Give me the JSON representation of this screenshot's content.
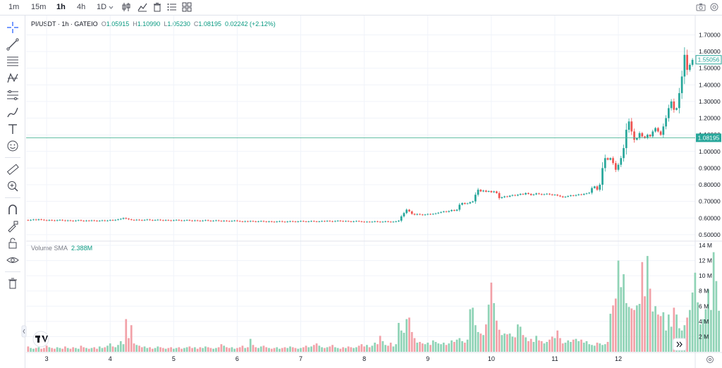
{
  "toolbar": {
    "timeframes": [
      "1m",
      "15m",
      "1h",
      "4h",
      "1D"
    ],
    "active_timeframe": "1h",
    "icons": [
      "candles-icon",
      "indicators-icon",
      "trash-icon",
      "list-icon",
      "layout-icon"
    ],
    "right_icons": [
      "camera-icon",
      "settings-icon"
    ]
  },
  "sidebar": {
    "tools": [
      "crosshair-icon",
      "trendline-icon",
      "fib-icon",
      "pattern-icon",
      "measure-icon",
      "brush-icon",
      "text-icon",
      "emoji-icon",
      "ruler-icon",
      "zoom-in-icon",
      "magnet-icon",
      "lock-drawing-icon",
      "lock-icon",
      "eye-icon",
      "trash-icon"
    ]
  },
  "legend": {
    "symbol": "PI/USDT · 1h · GATEIO",
    "o_label": "O",
    "o_value": "1.05915",
    "h_label": "H",
    "h_value": "1.10990",
    "l_label": "L",
    "l_value": "1.05230",
    "c_label": "C",
    "c_value": "1.08195",
    "change": "0.02242 (+2.12%)"
  },
  "volume_legend": {
    "label": "Volume SMA",
    "value": "2.388M"
  },
  "badges": {
    "last_price": "1.55056",
    "crosshair_price": "1.08195"
  },
  "colors": {
    "up": "#26a69a",
    "down": "#ef5350",
    "vol_up": "#8fd3b6",
    "vol_down": "#f2a1a8",
    "hline": "#4fb79a"
  },
  "chart_data": {
    "type": "candlestick",
    "price_axis": {
      "ticks": [
        "1.70000",
        "1.60000",
        "1.50000",
        "1.40000",
        "1.30000",
        "1.20000",
        "1.10000",
        "1.00000",
        "0.90000",
        "0.80000",
        "0.70000",
        "0.60000",
        "0.50000"
      ],
      "range": [
        0.47,
        1.74
      ]
    },
    "volume_axis": {
      "ticks": [
        "14 M",
        "12 M",
        "10 M",
        "8 M",
        "6 M",
        "4 M",
        "2 M"
      ],
      "range": [
        0,
        14
      ]
    },
    "x_axis": {
      "ticks": [
        "3",
        "4",
        "5",
        "6",
        "7",
        "8",
        "9",
        "10",
        "11",
        "12"
      ]
    },
    "horizontal_line": 1.08195,
    "last_price": 1.55056,
    "candles": [
      {
        "o": 0.588,
        "c": 0.586
      },
      {
        "o": 0.586,
        "c": 0.589
      },
      {
        "o": 0.589,
        "c": 0.591
      },
      {
        "o": 0.591,
        "c": 0.588
      },
      {
        "o": 0.588,
        "c": 0.592
      },
      {
        "o": 0.592,
        "c": 0.59
      },
      {
        "o": 0.59,
        "c": 0.587
      },
      {
        "o": 0.587,
        "c": 0.585
      },
      {
        "o": 0.585,
        "c": 0.588
      },
      {
        "o": 0.588,
        "c": 0.586
      },
      {
        "o": 0.586,
        "c": 0.584
      },
      {
        "o": 0.584,
        "c": 0.587
      },
      {
        "o": 0.587,
        "c": 0.589
      },
      {
        "o": 0.589,
        "c": 0.586
      },
      {
        "o": 0.586,
        "c": 0.583
      },
      {
        "o": 0.583,
        "c": 0.586
      },
      {
        "o": 0.586,
        "c": 0.584
      },
      {
        "o": 0.584,
        "c": 0.582
      },
      {
        "o": 0.582,
        "c": 0.585
      },
      {
        "o": 0.585,
        "c": 0.587
      },
      {
        "o": 0.587,
        "c": 0.584
      },
      {
        "o": 0.584,
        "c": 0.582
      },
      {
        "o": 0.582,
        "c": 0.585
      },
      {
        "o": 0.585,
        "c": 0.583
      },
      {
        "o": 0.583,
        "c": 0.586
      },
      {
        "o": 0.586,
        "c": 0.584
      },
      {
        "o": 0.584,
        "c": 0.582
      },
      {
        "o": 0.582,
        "c": 0.584
      },
      {
        "o": 0.584,
        "c": 0.586
      },
      {
        "o": 0.586,
        "c": 0.583
      },
      {
        "o": 0.583,
        "c": 0.585
      },
      {
        "o": 0.585,
        "c": 0.588
      },
      {
        "o": 0.588,
        "c": 0.586
      },
      {
        "o": 0.586,
        "c": 0.589
      },
      {
        "o": 0.589,
        "c": 0.592
      },
      {
        "o": 0.592,
        "c": 0.595
      },
      {
        "o": 0.595,
        "c": 0.6
      },
      {
        "o": 0.6,
        "c": 0.596
      },
      {
        "o": 0.596,
        "c": 0.592
      },
      {
        "o": 0.592,
        "c": 0.589
      },
      {
        "o": 0.589,
        "c": 0.587
      },
      {
        "o": 0.587,
        "c": 0.59
      },
      {
        "o": 0.59,
        "c": 0.588
      },
      {
        "o": 0.588,
        "c": 0.586
      },
      {
        "o": 0.586,
        "c": 0.589
      },
      {
        "o": 0.589,
        "c": 0.591
      },
      {
        "o": 0.591,
        "c": 0.588
      },
      {
        "o": 0.588,
        "c": 0.586
      },
      {
        "o": 0.586,
        "c": 0.588
      },
      {
        "o": 0.588,
        "c": 0.59
      },
      {
        "o": 0.59,
        "c": 0.587
      },
      {
        "o": 0.587,
        "c": 0.585
      },
      {
        "o": 0.585,
        "c": 0.588
      },
      {
        "o": 0.588,
        "c": 0.586
      },
      {
        "o": 0.586,
        "c": 0.584
      },
      {
        "o": 0.584,
        "c": 0.587
      },
      {
        "o": 0.587,
        "c": 0.589
      },
      {
        "o": 0.589,
        "c": 0.586
      },
      {
        "o": 0.586,
        "c": 0.584
      },
      {
        "o": 0.584,
        "c": 0.586
      },
      {
        "o": 0.586,
        "c": 0.588
      },
      {
        "o": 0.588,
        "c": 0.585
      },
      {
        "o": 0.585,
        "c": 0.583
      },
      {
        "o": 0.583,
        "c": 0.586
      },
      {
        "o": 0.586,
        "c": 0.584
      },
      {
        "o": 0.584,
        "c": 0.582
      },
      {
        "o": 0.582,
        "c": 0.585
      },
      {
        "o": 0.585,
        "c": 0.587
      },
      {
        "o": 0.587,
        "c": 0.584
      },
      {
        "o": 0.584,
        "c": 0.582
      },
      {
        "o": 0.582,
        "c": 0.584
      },
      {
        "o": 0.584,
        "c": 0.586
      },
      {
        "o": 0.586,
        "c": 0.583
      },
      {
        "o": 0.583,
        "c": 0.581
      },
      {
        "o": 0.581,
        "c": 0.584
      },
      {
        "o": 0.584,
        "c": 0.582
      },
      {
        "o": 0.582,
        "c": 0.58
      },
      {
        "o": 0.58,
        "c": 0.583
      },
      {
        "o": 0.583,
        "c": 0.585
      },
      {
        "o": 0.585,
        "c": 0.582
      },
      {
        "o": 0.582,
        "c": 0.58
      },
      {
        "o": 0.58,
        "c": 0.578
      },
      {
        "o": 0.578,
        "c": 0.581
      },
      {
        "o": 0.581,
        "c": 0.579
      },
      {
        "o": 0.579,
        "c": 0.582
      },
      {
        "o": 0.582,
        "c": 0.58
      },
      {
        "o": 0.58,
        "c": 0.578
      },
      {
        "o": 0.578,
        "c": 0.58
      },
      {
        "o": 0.58,
        "c": 0.582
      },
      {
        "o": 0.582,
        "c": 0.579
      },
      {
        "o": 0.579,
        "c": 0.577
      },
      {
        "o": 0.577,
        "c": 0.58
      },
      {
        "o": 0.58,
        "c": 0.578
      },
      {
        "o": 0.578,
        "c": 0.576
      },
      {
        "o": 0.576,
        "c": 0.579
      },
      {
        "o": 0.579,
        "c": 0.581
      },
      {
        "o": 0.581,
        "c": 0.578
      },
      {
        "o": 0.578,
        "c": 0.576
      },
      {
        "o": 0.576,
        "c": 0.579
      },
      {
        "o": 0.579,
        "c": 0.581
      },
      {
        "o": 0.581,
        "c": 0.579
      },
      {
        "o": 0.579,
        "c": 0.577
      },
      {
        "o": 0.577,
        "c": 0.58
      },
      {
        "o": 0.58,
        "c": 0.582
      },
      {
        "o": 0.582,
        "c": 0.58
      },
      {
        "o": 0.58,
        "c": 0.578
      },
      {
        "o": 0.578,
        "c": 0.58
      },
      {
        "o": 0.58,
        "c": 0.582
      },
      {
        "o": 0.582,
        "c": 0.58
      },
      {
        "o": 0.58,
        "c": 0.578
      },
      {
        "o": 0.578,
        "c": 0.58
      },
      {
        "o": 0.58,
        "c": 0.582
      },
      {
        "o": 0.582,
        "c": 0.58
      },
      {
        "o": 0.58,
        "c": 0.583
      },
      {
        "o": 0.583,
        "c": 0.581
      },
      {
        "o": 0.581,
        "c": 0.579
      },
      {
        "o": 0.579,
        "c": 0.582
      },
      {
        "o": 0.582,
        "c": 0.584
      },
      {
        "o": 0.584,
        "c": 0.582
      },
      {
        "o": 0.582,
        "c": 0.58
      },
      {
        "o": 0.58,
        "c": 0.582
      },
      {
        "o": 0.582,
        "c": 0.58
      },
      {
        "o": 0.58,
        "c": 0.578
      },
      {
        "o": 0.578,
        "c": 0.58
      },
      {
        "o": 0.58,
        "c": 0.582
      },
      {
        "o": 0.582,
        "c": 0.58
      },
      {
        "o": 0.58,
        "c": 0.578
      },
      {
        "o": 0.578,
        "c": 0.576
      },
      {
        "o": 0.576,
        "c": 0.578
      },
      {
        "o": 0.578,
        "c": 0.576
      },
      {
        "o": 0.576,
        "c": 0.578
      },
      {
        "o": 0.578,
        "c": 0.58
      },
      {
        "o": 0.58,
        "c": 0.578
      },
      {
        "o": 0.578,
        "c": 0.576
      },
      {
        "o": 0.576,
        "c": 0.578
      },
      {
        "o": 0.578,
        "c": 0.58
      },
      {
        "o": 0.58,
        "c": 0.578
      },
      {
        "o": 0.578,
        "c": 0.576
      },
      {
        "o": 0.576,
        "c": 0.578
      },
      {
        "o": 0.578,
        "c": 0.58
      },
      {
        "o": 0.58,
        "c": 0.584
      },
      {
        "o": 0.584,
        "c": 0.61
      },
      {
        "o": 0.61,
        "c": 0.63
      },
      {
        "o": 0.63,
        "c": 0.65
      },
      {
        "o": 0.65,
        "c": 0.64
      },
      {
        "o": 0.64,
        "c": 0.625
      },
      {
        "o": 0.625,
        "c": 0.62
      },
      {
        "o": 0.62,
        "c": 0.624
      },
      {
        "o": 0.624,
        "c": 0.621
      },
      {
        "o": 0.621,
        "c": 0.618
      },
      {
        "o": 0.618,
        "c": 0.621
      },
      {
        "o": 0.621,
        "c": 0.624
      },
      {
        "o": 0.624,
        "c": 0.622
      },
      {
        "o": 0.622,
        "c": 0.625
      },
      {
        "o": 0.625,
        "c": 0.628
      },
      {
        "o": 0.628,
        "c": 0.632
      },
      {
        "o": 0.632,
        "c": 0.636
      },
      {
        "o": 0.636,
        "c": 0.64
      },
      {
        "o": 0.64,
        "c": 0.637
      },
      {
        "o": 0.637,
        "c": 0.642
      },
      {
        "o": 0.642,
        "c": 0.648
      },
      {
        "o": 0.648,
        "c": 0.644
      },
      {
        "o": 0.644,
        "c": 0.65
      },
      {
        "o": 0.65,
        "c": 0.68
      },
      {
        "o": 0.68,
        "c": 0.69
      },
      {
        "o": 0.69,
        "c": 0.685
      },
      {
        "o": 0.685,
        "c": 0.688
      },
      {
        "o": 0.688,
        "c": 0.695
      },
      {
        "o": 0.695,
        "c": 0.7
      },
      {
        "o": 0.7,
        "c": 0.74
      },
      {
        "o": 0.74,
        "c": 0.77
      },
      {
        "o": 0.77,
        "c": 0.76
      },
      {
        "o": 0.76,
        "c": 0.765
      },
      {
        "o": 0.765,
        "c": 0.758
      },
      {
        "o": 0.758,
        "c": 0.762
      },
      {
        "o": 0.762,
        "c": 0.755
      },
      {
        "o": 0.755,
        "c": 0.76
      },
      {
        "o": 0.76,
        "c": 0.75
      },
      {
        "o": 0.75,
        "c": 0.72
      },
      {
        "o": 0.72,
        "c": 0.725
      },
      {
        "o": 0.725,
        "c": 0.73
      },
      {
        "o": 0.73,
        "c": 0.728
      },
      {
        "o": 0.728,
        "c": 0.734
      },
      {
        "o": 0.734,
        "c": 0.738
      },
      {
        "o": 0.738,
        "c": 0.735
      },
      {
        "o": 0.735,
        "c": 0.74
      },
      {
        "o": 0.74,
        "c": 0.745
      },
      {
        "o": 0.745,
        "c": 0.742
      },
      {
        "o": 0.742,
        "c": 0.75
      },
      {
        "o": 0.75,
        "c": 0.745
      },
      {
        "o": 0.745,
        "c": 0.738
      },
      {
        "o": 0.738,
        "c": 0.742
      },
      {
        "o": 0.742,
        "c": 0.748
      },
      {
        "o": 0.748,
        "c": 0.744
      },
      {
        "o": 0.744,
        "c": 0.74
      },
      {
        "o": 0.74,
        "c": 0.743
      },
      {
        "o": 0.743,
        "c": 0.746
      },
      {
        "o": 0.746,
        "c": 0.742
      },
      {
        "o": 0.742,
        "c": 0.738
      },
      {
        "o": 0.738,
        "c": 0.74
      },
      {
        "o": 0.74,
        "c": 0.735
      },
      {
        "o": 0.735,
        "c": 0.73
      },
      {
        "o": 0.73,
        "c": 0.725
      },
      {
        "o": 0.725,
        "c": 0.728
      },
      {
        "o": 0.728,
        "c": 0.732
      },
      {
        "o": 0.732,
        "c": 0.736
      },
      {
        "o": 0.736,
        "c": 0.734
      },
      {
        "o": 0.734,
        "c": 0.738
      },
      {
        "o": 0.738,
        "c": 0.742
      },
      {
        "o": 0.742,
        "c": 0.74
      },
      {
        "o": 0.74,
        "c": 0.745
      },
      {
        "o": 0.745,
        "c": 0.748
      },
      {
        "o": 0.748,
        "c": 0.752
      },
      {
        "o": 0.752,
        "c": 0.78
      },
      {
        "o": 0.78,
        "c": 0.79
      },
      {
        "o": 0.79,
        "c": 0.77
      },
      {
        "o": 0.77,
        "c": 0.8
      },
      {
        "o": 0.8,
        "c": 0.9
      },
      {
        "o": 0.9,
        "c": 0.96
      },
      {
        "o": 0.96,
        "c": 0.95
      },
      {
        "o": 0.95,
        "c": 0.96
      },
      {
        "o": 0.96,
        "c": 0.93
      },
      {
        "o": 0.93,
        "c": 0.89
      },
      {
        "o": 0.89,
        "c": 0.92
      },
      {
        "o": 0.92,
        "c": 0.96
      },
      {
        "o": 0.96,
        "c": 1.02
      },
      {
        "o": 1.02,
        "c": 1.13
      },
      {
        "o": 1.13,
        "c": 1.18
      },
      {
        "o": 1.18,
        "c": 1.12
      },
      {
        "o": 1.12,
        "c": 1.07
      },
      {
        "o": 1.07,
        "c": 1.08
      },
      {
        "o": 1.08,
        "c": 1.11
      },
      {
        "o": 1.11,
        "c": 1.09
      },
      {
        "o": 1.09,
        "c": 1.08
      },
      {
        "o": 1.08,
        "c": 1.1
      },
      {
        "o": 1.1,
        "c": 1.09
      },
      {
        "o": 1.09,
        "c": 1.12
      },
      {
        "o": 1.12,
        "c": 1.14
      },
      {
        "o": 1.14,
        "c": 1.12
      },
      {
        "o": 1.12,
        "c": 1.1
      },
      {
        "o": 1.1,
        "c": 1.15
      },
      {
        "o": 1.15,
        "c": 1.2
      },
      {
        "o": 1.2,
        "c": 1.26
      },
      {
        "o": 1.26,
        "c": 1.3
      },
      {
        "o": 1.3,
        "c": 1.25
      },
      {
        "o": 1.25,
        "c": 1.26
      },
      {
        "o": 1.26,
        "c": 1.35
      },
      {
        "o": 1.35,
        "c": 1.45
      },
      {
        "o": 1.45,
        "c": 1.58
      },
      {
        "o": 1.58,
        "c": 1.49
      },
      {
        "o": 1.49,
        "c": 1.52
      },
      {
        "o": 1.52,
        "c": 1.55
      }
    ],
    "volumes": [
      0.7,
      0.5,
      0.4,
      0.5,
      0.6,
      0.4,
      0.5,
      0.8,
      0.6,
      0.5,
      0.4,
      0.6,
      0.5,
      0.4,
      0.7,
      0.5,
      0.4,
      0.6,
      0.5,
      0.4,
      0.8,
      0.6,
      0.5,
      0.4,
      0.5,
      0.6,
      0.4,
      0.7,
      0.5,
      0.6,
      0.8,
      1.1,
      0.7,
      0.6,
      0.9,
      1.4,
      1.0,
      4.3,
      1.8,
      3.5,
      1.1,
      0.9,
      0.8,
      0.6,
      0.7,
      0.5,
      0.6,
      0.4,
      0.5,
      0.7,
      0.6,
      0.5,
      0.4,
      0.5,
      0.6,
      0.4,
      0.5,
      0.6,
      0.4,
      0.5,
      0.6,
      0.7,
      0.5,
      0.6,
      0.4,
      0.6,
      0.5,
      0.7,
      0.6,
      0.5,
      0.4,
      0.5,
      0.6,
      1.0,
      0.8,
      0.6,
      0.5,
      0.6,
      0.4,
      0.5,
      0.6,
      0.8,
      0.5,
      0.6,
      1.7,
      0.9,
      0.6,
      0.5,
      0.7,
      0.8,
      0.6,
      0.5,
      0.4,
      0.5,
      0.6,
      0.4,
      0.5,
      0.6,
      0.5,
      0.7,
      0.6,
      0.5,
      0.4,
      0.5,
      0.6,
      0.8,
      0.6,
      0.7,
      0.9,
      1.1,
      0.8,
      0.6,
      0.5,
      0.6,
      0.7,
      0.9,
      0.6,
      0.5,
      0.4,
      0.6,
      0.5,
      0.7,
      0.6,
      0.5,
      0.6,
      0.8,
      1.0,
      0.7,
      0.9,
      0.6,
      0.8,
      1.2,
      1.0,
      2.1,
      1.4,
      0.9,
      0.8,
      1.2,
      0.7,
      1.0,
      3.8,
      2.8,
      2.5,
      4.3,
      4.5,
      2.6,
      1.8,
      1.2,
      1.3,
      1.1,
      1.0,
      1.2,
      0.9,
      1.5,
      1.3,
      1.1,
      1.0,
      1.2,
      0.9,
      1.1,
      1.5,
      1.3,
      1.6,
      1.8,
      1.4,
      1.2,
      1.6,
      5.6,
      5.8,
      3.5,
      2.6,
      2.4,
      2.2,
      3.6,
      6.2,
      9.1,
      6.4,
      4.1,
      2.9,
      2.2,
      2.4,
      2.3,
      2.4,
      2.0,
      1.9,
      3.6,
      3.3,
      2.2,
      1.9,
      1.4,
      1.7,
      1.3,
      2.1,
      1.5,
      1.4,
      1.1,
      1.3,
      1.6,
      2.0,
      1.8,
      2.8,
      1.8,
      1.1,
      1.2,
      1.5,
      1.3,
      1.6,
      1.7,
      1.4,
      1.6,
      1.2,
      1.4,
      1.0,
      0.9,
      0.8,
      1.2,
      1.1,
      0.9,
      1.0,
      1.3,
      5.0,
      6.1,
      7.0,
      12.0,
      8.5,
      10.2,
      6.4,
      5.9,
      5.7,
      5.5,
      6.1,
      6.3,
      11.8,
      7.3,
      12.6,
      8.3,
      5.3,
      6.0,
      4.9,
      4.7,
      5.2,
      2.8,
      4.9,
      3.3,
      5.8,
      4.9,
      3.1,
      2.8,
      3.5,
      4.5,
      5.5,
      7.8,
      10.4,
      6.5,
      3.6,
      4.3,
      5.6,
      8.2,
      5.5,
      13.1,
      9.3,
      5.4
    ]
  }
}
